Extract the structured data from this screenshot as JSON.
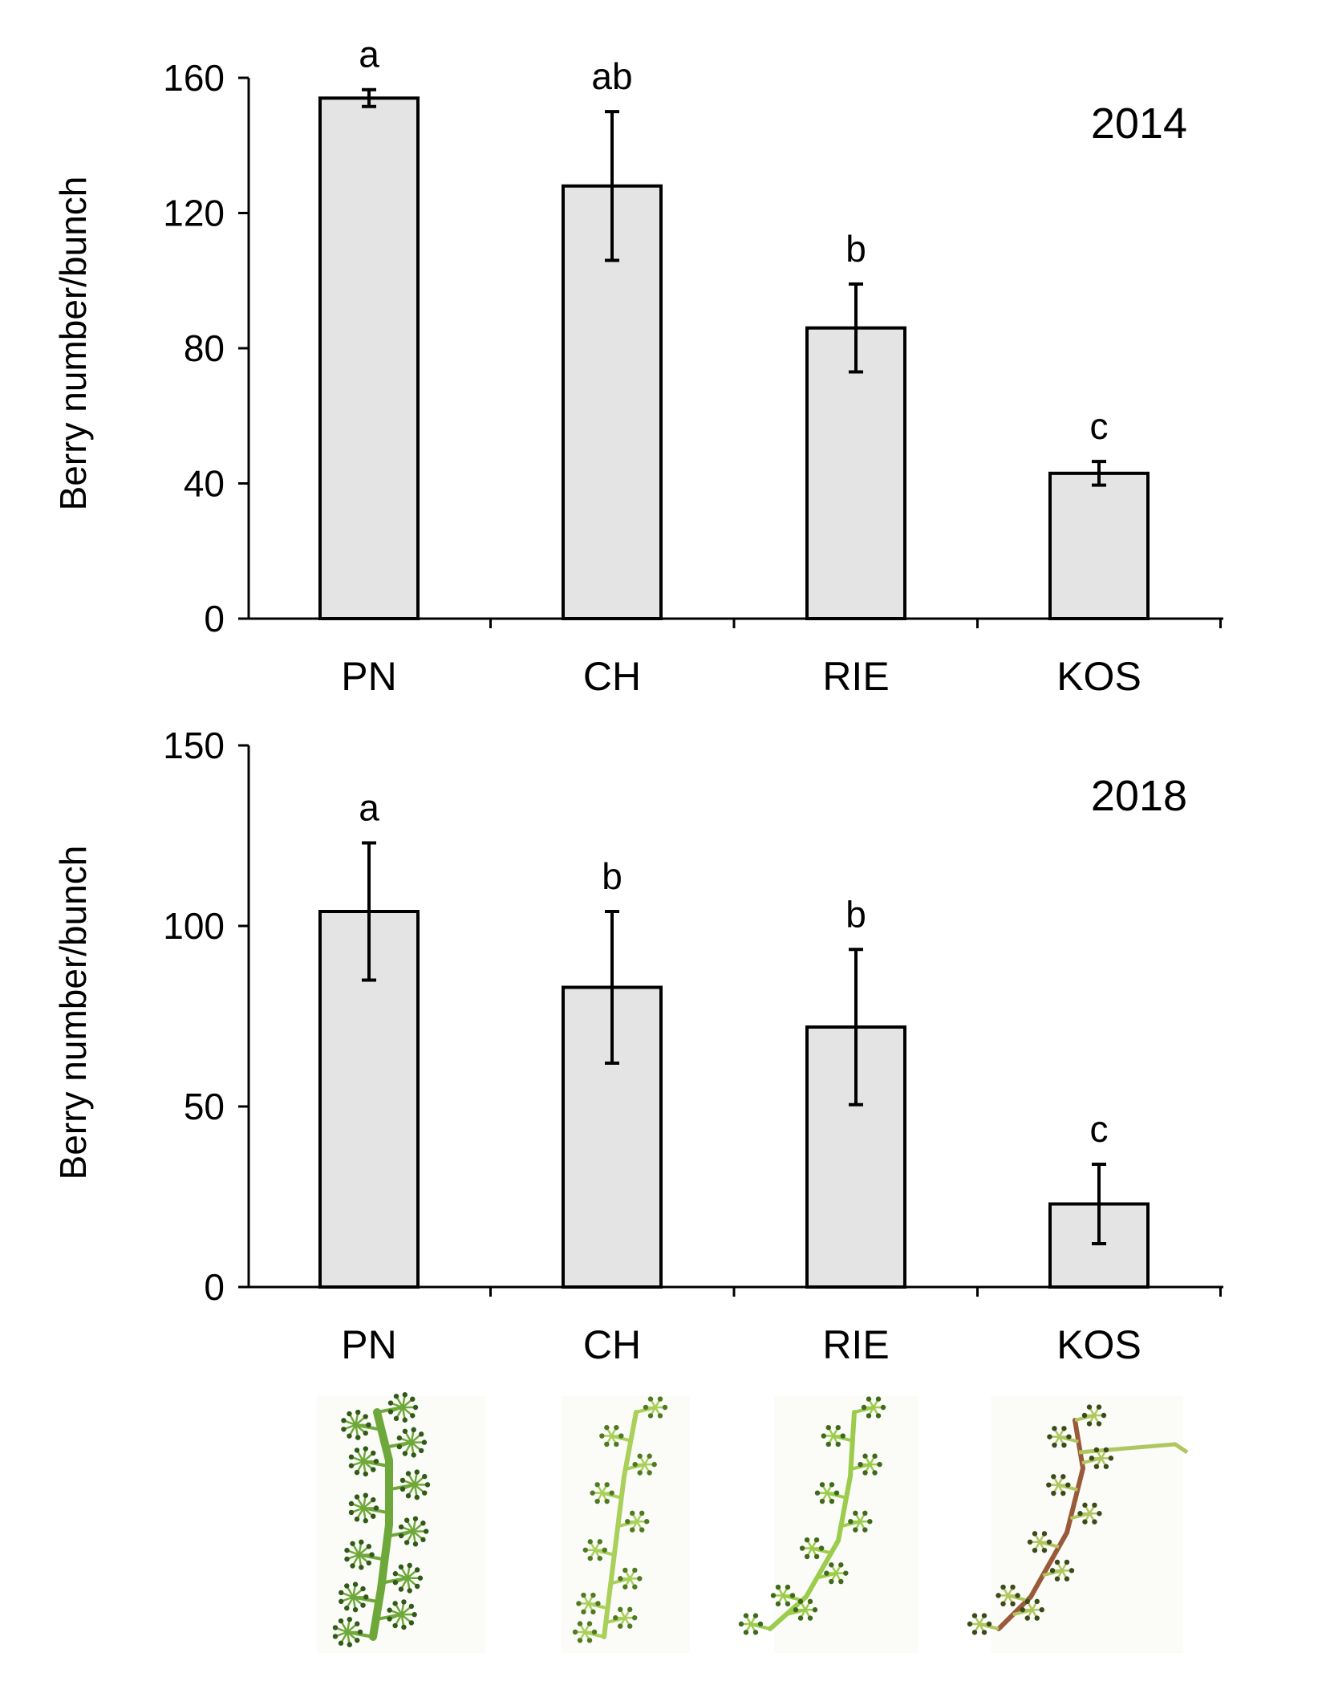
{
  "chart_data": [
    {
      "type": "bar",
      "title": "2014",
      "xlabel": "",
      "ylabel": "Berry number/bunch",
      "categories": [
        "PN",
        "CH",
        "RIE",
        "KOS"
      ],
      "values": [
        154,
        128,
        86,
        43
      ],
      "error": [
        2.5,
        22,
        13,
        3.5
      ],
      "letters": [
        "a",
        "ab",
        "b",
        "c"
      ],
      "ylim": [
        0,
        160
      ],
      "yticks": [
        0,
        40,
        80,
        120,
        160
      ],
      "ytick_labels": [
        "0",
        "40",
        "80",
        "120",
        "160"
      ],
      "grid": false,
      "bar_color": "#e4e4e4"
    },
    {
      "type": "bar",
      "title": "2018",
      "xlabel": "",
      "ylabel": "Berry number/bunch",
      "categories": [
        "PN",
        "CH",
        "RIE",
        "KOS"
      ],
      "values": [
        104,
        83,
        72,
        23
      ],
      "error": [
        19,
        21,
        21.5,
        11
      ],
      "letters": [
        "a",
        "b",
        "b",
        "c"
      ],
      "ylim": [
        0,
        150
      ],
      "yticks": [
        0,
        50,
        100,
        150
      ],
      "ytick_labels": [
        "0",
        "50",
        "100",
        "150"
      ],
      "grid": false,
      "bar_color": "#e4e4e4"
    }
  ],
  "photos": [
    {
      "name": "PN",
      "stem_color": "#6fa83a",
      "tip_color": "#2f5a18"
    },
    {
      "name": "CH",
      "stem_color": "#a8d05a",
      "tip_color": "#4f7a22"
    },
    {
      "name": "RIE",
      "stem_color": "#9ccc4c",
      "tip_color": "#3f6a1c"
    },
    {
      "name": "KOS",
      "stem_color": "#b0c660",
      "tip_color": "#3a4a18",
      "main_stem_color": "#9a5a3a"
    }
  ]
}
